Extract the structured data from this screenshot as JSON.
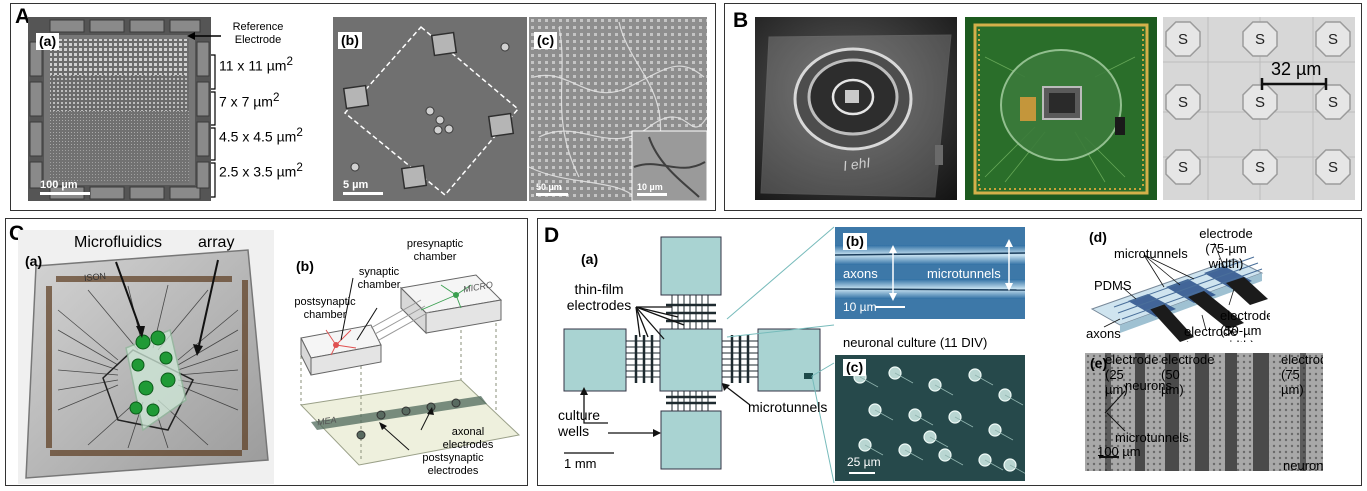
{
  "panel_A": {
    "label": "A",
    "a": {
      "label": "(a)",
      "scale": "100 µm",
      "ref_electrode": "Reference Electrode",
      "sizes": [
        "11 x 11 µm",
        "7 x 7 µm",
        "4.5 x 4.5 µm",
        "2.5 x 3.5 µm"
      ],
      "size_sup": "2"
    },
    "b": {
      "label": "(b)",
      "scale": "5 µm"
    },
    "c": {
      "label": "(c)",
      "scale": "50 µm",
      "inset_scale": "10 µm"
    }
  },
  "panel_B": {
    "label": "B",
    "scale": "32 µm",
    "electrode_letter": "S",
    "photo1_handwriting": "I ehI"
  },
  "panel_C": {
    "label": "C",
    "a": {
      "label": "(a)",
      "microfluidics": "Microfluidics",
      "array": "array",
      "chip_mark": "ISON"
    },
    "b": {
      "label": "(b)",
      "presynaptic": "presynaptic chamber",
      "synaptic": "synaptic chamber",
      "postsynaptic": "postsynaptic chamber",
      "micro": "MICRO",
      "mea": "MEA",
      "axonal": "axonal electrodes",
      "postsyn_el": "postsynaptic electrodes"
    }
  },
  "panel_D": {
    "label": "D",
    "a": {
      "label": "(a)",
      "thin_film": "thin-film electrodes",
      "culture_wells": "culture wells",
      "microtunnels": "microtunnels",
      "scale": "1 mm"
    },
    "b": {
      "label": "(b)",
      "axons": "axons",
      "microtunnels": "microtunnels",
      "scale": "10 µm"
    },
    "c": {
      "label": "(c)",
      "caption": "neuronal culture (11 DIV)",
      "scale": "25 µm"
    },
    "d": {
      "label": "(d)",
      "el75": "electrode (75-µm width)",
      "el50": "electrode (50-µm width)",
      "el25": "electrode (25-µm width)",
      "microtunnels": "microtunnels",
      "pdms": "PDMS",
      "axons": "axons"
    },
    "e": {
      "label": "(e)",
      "el_a": "electrode (25 µm)",
      "el_b": "electrode (50 µm)",
      "el_c": "electrode (75 µm)",
      "neurons_top": "neurons",
      "microtunnels": "microtunnels",
      "neurons_bot": "neurons",
      "scale": "100 µm"
    }
  }
}
